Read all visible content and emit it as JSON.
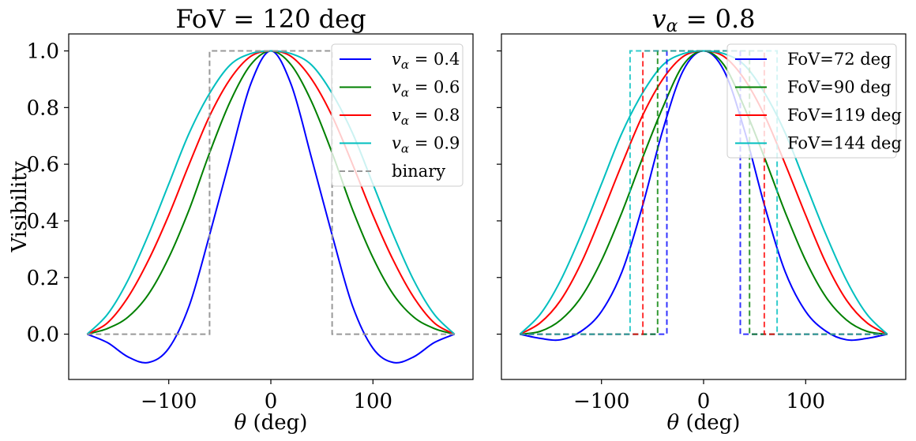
{
  "chart_data": [
    {
      "type": "line",
      "title": "FoV = 120 deg",
      "xlabel": "θ (deg)",
      "ylabel": "Visibility",
      "xlim": [
        -198,
        198
      ],
      "ylim": [
        -0.16,
        1.06
      ],
      "xticks": [
        -100,
        0,
        100
      ],
      "xtick_labels": [
        "−100",
        "0",
        "100"
      ],
      "yticks": [
        0.0,
        0.2,
        0.4,
        0.6,
        0.8,
        1.0
      ],
      "ytick_labels": [
        "0.0",
        "0.2",
        "0.4",
        "0.6",
        "0.8",
        "1.0"
      ],
      "show_yticklabels": true,
      "grid": false,
      "legend_position": "upper-right",
      "legend_layered_above_lines": true,
      "x": [
        -180,
        -160,
        -140,
        -120,
        -100,
        -80,
        -60,
        -40,
        -20,
        0,
        20,
        40,
        60,
        80,
        100,
        120,
        140,
        160,
        180
      ],
      "series": [
        {
          "name": "v_α = 0.4",
          "sub": "α",
          "value_label": "0.4",
          "color": "#0000ff",
          "dashed": false,
          "values": [
            0.0,
            -0.03,
            -0.08,
            -0.1,
            -0.05,
            0.1,
            0.35,
            0.62,
            0.88,
            1.0,
            0.88,
            0.62,
            0.35,
            0.1,
            -0.05,
            -0.1,
            -0.08,
            -0.03,
            0.0
          ]
        },
        {
          "name": "v_α = 0.6",
          "sub": "α",
          "value_label": "0.6",
          "color": "#008000",
          "dashed": false,
          "values": [
            0.0,
            0.02,
            0.06,
            0.14,
            0.27,
            0.44,
            0.64,
            0.82,
            0.95,
            1.0,
            0.95,
            0.82,
            0.64,
            0.44,
            0.27,
            0.14,
            0.06,
            0.02,
            0.0
          ]
        },
        {
          "name": "v_α = 0.8",
          "sub": "α",
          "value_label": "0.8",
          "color": "#ff0000",
          "dashed": false,
          "values": [
            0.0,
            0.04,
            0.13,
            0.26,
            0.42,
            0.6,
            0.77,
            0.9,
            0.98,
            1.0,
            0.98,
            0.9,
            0.77,
            0.6,
            0.42,
            0.26,
            0.13,
            0.04,
            0.0
          ]
        },
        {
          "name": "v_α = 0.9",
          "sub": "α",
          "value_label": "0.9",
          "color": "#00bfbf",
          "dashed": false,
          "values": [
            0.0,
            0.07,
            0.19,
            0.35,
            0.53,
            0.71,
            0.85,
            0.95,
            0.99,
            1.0,
            0.99,
            0.95,
            0.85,
            0.71,
            0.53,
            0.35,
            0.19,
            0.07,
            0.0
          ]
        },
        {
          "name": "binary",
          "color": "#999999",
          "dashed": true,
          "x": [
            -180,
            -60,
            -60,
            60,
            60,
            180
          ],
          "values": [
            0,
            0,
            1,
            1,
            0,
            0
          ]
        }
      ]
    },
    {
      "type": "line",
      "title": "v_α = 0.8",
      "title_sub": "α",
      "title_value": "0.8",
      "xlabel": "θ (deg)",
      "ylabel": "",
      "xlim": [
        -198,
        198
      ],
      "ylim": [
        -0.16,
        1.06
      ],
      "xticks": [
        -100,
        0,
        100
      ],
      "xtick_labels": [
        "−100",
        "0",
        "100"
      ],
      "yticks": [
        0.0,
        0.2,
        0.4,
        0.6,
        0.8,
        1.0
      ],
      "show_yticklabels": false,
      "grid": false,
      "legend_position": "upper-right",
      "legend_layered_above_lines": false,
      "x": [
        -180,
        -160,
        -140,
        -120,
        -100,
        -80,
        -60,
        -40,
        -20,
        0,
        20,
        40,
        60,
        80,
        100,
        120,
        140,
        160,
        180
      ],
      "series": [
        {
          "name": "FoV=72 deg",
          "color": "#0000ff",
          "dashed": false,
          "values": [
            0.0,
            -0.015,
            -0.02,
            0.01,
            0.08,
            0.22,
            0.45,
            0.72,
            0.93,
            1.0,
            0.93,
            0.72,
            0.45,
            0.22,
            0.08,
            0.01,
            -0.02,
            -0.015,
            0.0
          ]
        },
        {
          "name": "FoV=90 deg",
          "color": "#008000",
          "dashed": false,
          "values": [
            0.0,
            0.01,
            0.05,
            0.13,
            0.26,
            0.43,
            0.62,
            0.8,
            0.95,
            1.0,
            0.95,
            0.8,
            0.62,
            0.43,
            0.26,
            0.13,
            0.05,
            0.01,
            0.0
          ]
        },
        {
          "name": "FoV=119 deg",
          "color": "#ff0000",
          "dashed": false,
          "values": [
            0.0,
            0.04,
            0.12,
            0.25,
            0.42,
            0.6,
            0.77,
            0.9,
            0.98,
            1.0,
            0.98,
            0.9,
            0.77,
            0.6,
            0.42,
            0.25,
            0.12,
            0.04,
            0.0
          ]
        },
        {
          "name": "FoV=144 deg",
          "color": "#00bfbf",
          "dashed": false,
          "values": [
            0.0,
            0.07,
            0.19,
            0.35,
            0.53,
            0.71,
            0.85,
            0.95,
            0.99,
            1.0,
            0.99,
            0.95,
            0.85,
            0.71,
            0.53,
            0.35,
            0.19,
            0.07,
            0.0
          ]
        },
        {
          "name": "binary 72",
          "color": "#0000ff",
          "dashed": true,
          "in_legend": false,
          "x": [
            -180,
            -36,
            -36,
            36,
            36,
            180
          ],
          "values": [
            0,
            0,
            1,
            1,
            0,
            0
          ]
        },
        {
          "name": "binary 90",
          "color": "#008000",
          "dashed": true,
          "in_legend": false,
          "x": [
            -180,
            -45,
            -45,
            45,
            45,
            180
          ],
          "values": [
            0,
            0,
            1,
            1,
            0,
            0
          ]
        },
        {
          "name": "binary 119",
          "color": "#ff0000",
          "dashed": true,
          "in_legend": false,
          "x": [
            -180,
            -59.5,
            -59.5,
            59.5,
            59.5,
            180
          ],
          "values": [
            0,
            0,
            1,
            1,
            0,
            0
          ]
        },
        {
          "name": "binary 144",
          "color": "#00bfbf",
          "dashed": true,
          "in_legend": false,
          "x": [
            -180,
            -72,
            -72,
            72,
            72,
            180
          ],
          "values": [
            0,
            0,
            1,
            1,
            0,
            0
          ]
        }
      ]
    }
  ]
}
